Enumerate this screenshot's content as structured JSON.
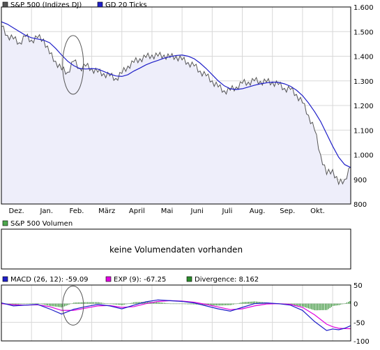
{
  "colors": {
    "price": "#555555",
    "ma": "#1f1fc8",
    "area": "#eeeefa",
    "grid": "#d8d8d8",
    "volume": "#4ea84e",
    "macd": "#1f1fc8",
    "exp": "#e000e0",
    "divergence": "#2c8c2c",
    "circle": "#555555"
  },
  "chart_data": [
    {
      "type": "line",
      "panel": "price",
      "legend": [
        "S&P 500 (Indizes DJ)",
        "GD 20 Ticks"
      ],
      "ylim": [
        800,
        1600
      ],
      "y_ticks": [
        "1.600",
        "1.500",
        "1.400",
        "1.300",
        "1.200",
        "1.100",
        "1.000",
        "900",
        "800"
      ],
      "y_tick_values": [
        1600,
        1500,
        1400,
        1300,
        1200,
        1100,
        1000,
        900,
        800
      ],
      "months": [
        "Dez.",
        "Jan.",
        "Feb.",
        "März",
        "April",
        "Mai",
        "Juni",
        "Juli",
        "Aug.",
        "Sep.",
        "Okt."
      ],
      "month_positions": [
        0.5,
        1.5,
        2.5,
        3.5,
        4.5,
        5.5,
        6.5,
        7.5,
        8.5,
        9.5,
        10.5
      ],
      "x_range": [
        0,
        11.6
      ],
      "series": [
        {
          "name": "S&P 500 (Indizes DJ)",
          "x": [
            0.0,
            0.2,
            0.4,
            0.6,
            0.8,
            1.0,
            1.2,
            1.4,
            1.6,
            1.8,
            2.0,
            2.2,
            2.4,
            2.6,
            2.8,
            3.0,
            3.2,
            3.4,
            3.6,
            3.8,
            4.0,
            4.2,
            4.4,
            4.6,
            4.8,
            5.0,
            5.2,
            5.4,
            5.6,
            5.8,
            6.0,
            6.2,
            6.4,
            6.6,
            6.8,
            7.0,
            7.2,
            7.4,
            7.6,
            7.8,
            8.0,
            8.2,
            8.4,
            8.6,
            8.8,
            9.0,
            9.2,
            9.4,
            9.6,
            9.8,
            10.0,
            10.2,
            10.4,
            10.6,
            10.8,
            11.0,
            11.2,
            11.4,
            11.6
          ],
          "values": [
            1520,
            1485,
            1470,
            1455,
            1480,
            1465,
            1475,
            1470,
            1410,
            1380,
            1345,
            1335,
            1380,
            1352,
            1360,
            1350,
            1335,
            1330,
            1320,
            1310,
            1330,
            1360,
            1375,
            1390,
            1395,
            1405,
            1400,
            1405,
            1395,
            1400,
            1385,
            1375,
            1360,
            1340,
            1320,
            1300,
            1275,
            1260,
            1262,
            1275,
            1290,
            1295,
            1300,
            1298,
            1295,
            1295,
            1285,
            1270,
            1265,
            1245,
            1210,
            1160,
            1100,
            1000,
            920,
            940,
            880,
            900,
            950
          ]
        },
        {
          "name": "GD 20 Ticks",
          "x": [
            0.0,
            0.2,
            0.4,
            0.6,
            0.8,
            1.0,
            1.2,
            1.4,
            1.6,
            1.8,
            2.0,
            2.2,
            2.4,
            2.6,
            2.8,
            3.0,
            3.2,
            3.4,
            3.6,
            3.8,
            4.0,
            4.2,
            4.4,
            4.6,
            4.8,
            5.0,
            5.2,
            5.4,
            5.6,
            5.8,
            6.0,
            6.2,
            6.4,
            6.6,
            6.8,
            7.0,
            7.2,
            7.4,
            7.6,
            7.8,
            8.0,
            8.2,
            8.4,
            8.6,
            8.8,
            9.0,
            9.2,
            9.4,
            9.6,
            9.8,
            10.0,
            10.2,
            10.4,
            10.6,
            10.8,
            11.0,
            11.2,
            11.4,
            11.6
          ],
          "values": [
            1540,
            1530,
            1515,
            1500,
            1485,
            1475,
            1470,
            1465,
            1455,
            1432,
            1405,
            1380,
            1362,
            1350,
            1348,
            1350,
            1348,
            1338,
            1328,
            1320,
            1318,
            1325,
            1340,
            1352,
            1365,
            1375,
            1383,
            1392,
            1398,
            1403,
            1405,
            1400,
            1390,
            1372,
            1350,
            1325,
            1300,
            1280,
            1268,
            1265,
            1268,
            1275,
            1282,
            1288,
            1292,
            1295,
            1294,
            1288,
            1278,
            1262,
            1240,
            1210,
            1175,
            1135,
            1085,
            1035,
            990,
            960,
            948
          ]
        }
      ]
    },
    {
      "type": "bar",
      "panel": "volume",
      "legend": [
        "S&P 500 Volumen"
      ],
      "message": "keine Volumendaten vorhanden"
    },
    {
      "type": "line",
      "panel": "macd",
      "legend": [
        "MACD (26, 12): -59.09",
        "EXP (9): -67.25",
        "Divergence: 8.162"
      ],
      "ylim": [
        -100,
        50
      ],
      "y_ticks": [
        "50",
        "0",
        "-50",
        "-100"
      ],
      "y_tick_values": [
        50,
        0,
        -50,
        -100
      ],
      "x_range": [
        0,
        11.6
      ],
      "series": [
        {
          "name": "MACD (26, 12)",
          "x": [
            0.0,
            0.4,
            0.8,
            1.2,
            1.6,
            2.0,
            2.4,
            2.8,
            3.2,
            3.6,
            4.0,
            4.4,
            4.8,
            5.2,
            5.6,
            6.0,
            6.4,
            6.8,
            7.2,
            7.6,
            8.0,
            8.4,
            8.8,
            9.2,
            9.6,
            10.0,
            10.4,
            10.8,
            11.0,
            11.2,
            11.4,
            11.6
          ],
          "values": [
            2,
            -6,
            -4,
            -2,
            -14,
            -28,
            -15,
            -8,
            -2,
            -6,
            -14,
            -4,
            5,
            10,
            8,
            6,
            2,
            -6,
            -14,
            -20,
            -10,
            0,
            2,
            0,
            -4,
            -18,
            -48,
            -72,
            -68,
            -70,
            -66,
            -59.09
          ]
        },
        {
          "name": "EXP (9)",
          "x": [
            0.0,
            0.4,
            0.8,
            1.2,
            1.6,
            2.0,
            2.4,
            2.8,
            3.2,
            3.6,
            4.0,
            4.4,
            4.8,
            5.2,
            5.6,
            6.0,
            6.4,
            6.8,
            7.2,
            7.6,
            8.0,
            8.4,
            8.8,
            9.2,
            9.6,
            10.0,
            10.4,
            10.8,
            11.0,
            11.2,
            11.4,
            11.6
          ],
          "values": [
            0,
            -3,
            -4,
            -3,
            -8,
            -18,
            -18,
            -12,
            -6,
            -5,
            -10,
            -8,
            0,
            6,
            8,
            7,
            4,
            -2,
            -9,
            -16,
            -14,
            -6,
            -1,
            0,
            -2,
            -10,
            -30,
            -55,
            -62,
            -66,
            -67,
            -67.25
          ]
        },
        {
          "name": "Divergence",
          "type": "bar",
          "x": [
            0.0,
            0.4,
            0.8,
            1.2,
            1.6,
            2.0,
            2.4,
            2.8,
            3.2,
            3.6,
            4.0,
            4.4,
            4.8,
            5.2,
            5.6,
            6.0,
            6.4,
            6.8,
            7.2,
            7.6,
            8.0,
            8.4,
            8.8,
            9.2,
            9.6,
            10.0,
            10.4,
            10.8,
            11.0,
            11.2,
            11.4,
            11.6
          ],
          "values": [
            2,
            -3,
            0,
            1,
            -6,
            -10,
            3,
            4,
            4,
            -1,
            -4,
            4,
            5,
            4,
            0,
            -1,
            -2,
            -4,
            -5,
            -4,
            4,
            6,
            3,
            0,
            -2,
            -8,
            -18,
            -17,
            -6,
            -4,
            1,
            8.162
          ]
        }
      ]
    }
  ]
}
